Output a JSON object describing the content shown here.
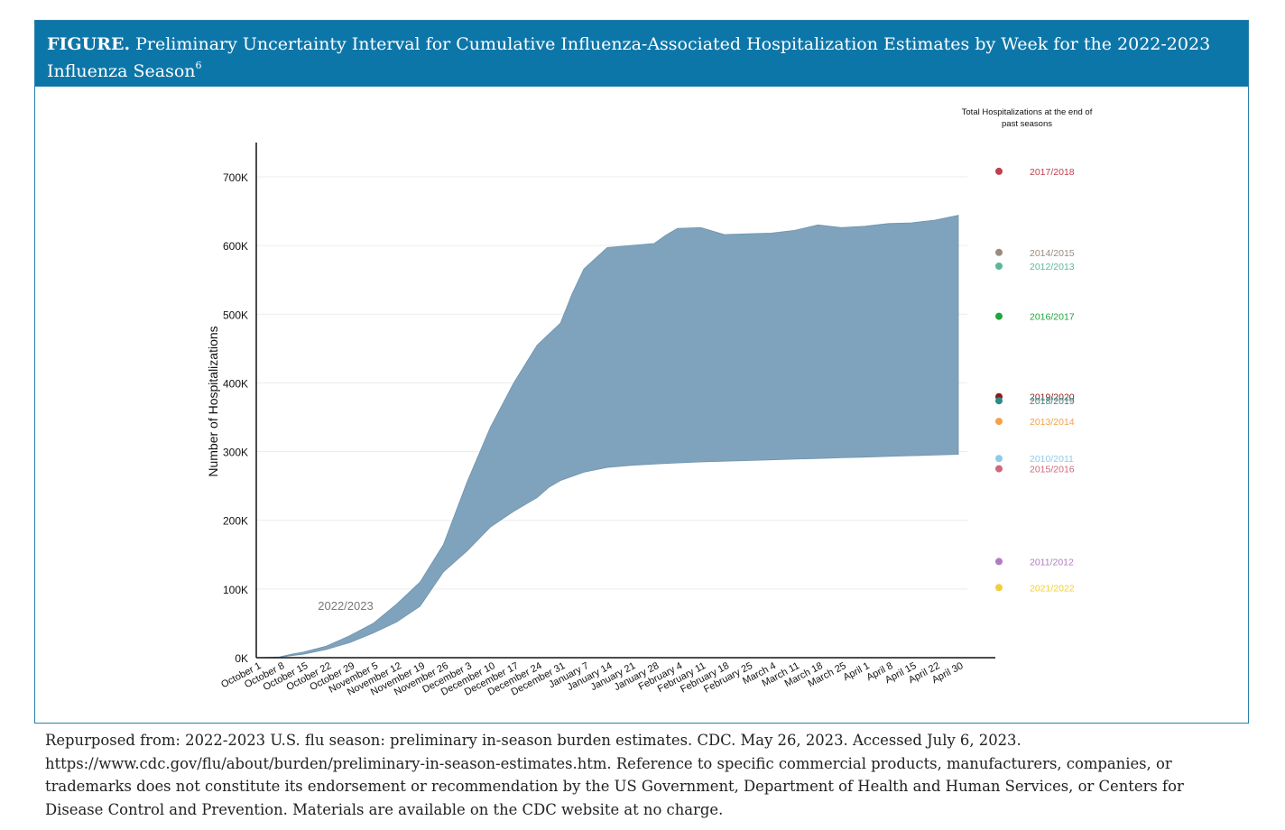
{
  "header": {
    "label": "FIGURE.",
    "title": "Preliminary Uncertainty Interval for Cumulative Influenza-Associated Hospitalization Estimates by Week for the 2022-2023 Influenza Season",
    "footnote": "6"
  },
  "chart_data": {
    "type": "area",
    "title": "",
    "xlabel": "",
    "ylabel": "Number of Hospitalizations",
    "ylim": [
      0,
      750000
    ],
    "y_ticks": [
      {
        "value": 0,
        "label": "0K"
      },
      {
        "value": 100000,
        "label": "100K"
      },
      {
        "value": 200000,
        "label": "200K"
      },
      {
        "value": 300000,
        "label": "300K"
      },
      {
        "value": 400000,
        "label": "400K"
      },
      {
        "value": 500000,
        "label": "500K"
      },
      {
        "value": 600000,
        "label": "600K"
      },
      {
        "value": 700000,
        "label": "700K"
      }
    ],
    "grid": true,
    "band_label": "2022/2023",
    "band_color": "#7fa3bd",
    "x_tick_labels": [
      "October 1",
      "October 8",
      "October 15",
      "October 22",
      "October 29",
      "November 5",
      "November 12",
      "November 19",
      "November 26",
      "December 3",
      "December 10",
      "December 17",
      "December 24",
      "December 31",
      "January 7",
      "January 14",
      "January 21",
      "January 28",
      "February 4",
      "February 11",
      "February 18",
      "February 25",
      "March 4",
      "March 11",
      "March 18",
      "March 25",
      "April 1",
      "April 8",
      "April 15",
      "April 22",
      "April 30"
    ],
    "series": [
      {
        "name": "2022/2023 upper bound",
        "points": [
          [
            0,
            0
          ],
          [
            1,
            1000
          ],
          [
            1.5,
            5000
          ],
          [
            2,
            8000
          ],
          [
            3,
            17000
          ],
          [
            4,
            32000
          ],
          [
            5,
            50000
          ],
          [
            6,
            78000
          ],
          [
            7,
            110000
          ],
          [
            8,
            165000
          ],
          [
            9,
            255000
          ],
          [
            10,
            335000
          ],
          [
            11,
            400000
          ],
          [
            12,
            455000
          ],
          [
            13,
            487000
          ],
          [
            13.5,
            530000
          ],
          [
            14,
            566000
          ],
          [
            15,
            597000
          ],
          [
            16,
            600000
          ],
          [
            17,
            603000
          ],
          [
            17.5,
            615000
          ],
          [
            18,
            625000
          ],
          [
            19,
            626000
          ],
          [
            20,
            616000
          ],
          [
            21,
            617000
          ],
          [
            22,
            618000
          ],
          [
            23,
            622000
          ],
          [
            24,
            630000
          ],
          [
            25,
            626000
          ],
          [
            26,
            628000
          ],
          [
            27,
            632000
          ],
          [
            28,
            633000
          ],
          [
            29,
            637000
          ],
          [
            30,
            644000
          ]
        ]
      },
      {
        "name": "2022/2023 lower bound",
        "points": [
          [
            0,
            0
          ],
          [
            1,
            500
          ],
          [
            1.5,
            3000
          ],
          [
            2,
            5000
          ],
          [
            3,
            12000
          ],
          [
            4,
            22000
          ],
          [
            5,
            36000
          ],
          [
            6,
            52000
          ],
          [
            7,
            75000
          ],
          [
            8,
            125000
          ],
          [
            9,
            155000
          ],
          [
            10,
            190000
          ],
          [
            11,
            213000
          ],
          [
            12,
            233000
          ],
          [
            12.5,
            248000
          ],
          [
            13,
            258000
          ],
          [
            14,
            270000
          ],
          [
            15,
            277000
          ],
          [
            16,
            280000
          ],
          [
            17,
            282000
          ],
          [
            18,
            283500
          ],
          [
            19,
            285000
          ],
          [
            20,
            286000
          ],
          [
            21,
            287000
          ],
          [
            22,
            288000
          ],
          [
            23,
            289000
          ],
          [
            24,
            290000
          ],
          [
            25,
            291000
          ],
          [
            26,
            292000
          ],
          [
            27,
            293000
          ],
          [
            28,
            294000
          ],
          [
            29,
            295000
          ],
          [
            30,
            296000
          ]
        ]
      }
    ],
    "legend_title": "Total Hospitalizations at the end of past seasons",
    "past_seasons": [
      {
        "season": "2017/2018",
        "value": 708000,
        "color": "#c0404e"
      },
      {
        "season": "2014/2015",
        "value": 590000,
        "color": "#9c8b7e"
      },
      {
        "season": "2012/2013",
        "value": 570000,
        "color": "#5bb896"
      },
      {
        "season": "2016/2017",
        "value": 497000,
        "color": "#22a43c"
      },
      {
        "season": "2019/2020",
        "value": 380000,
        "color": "#8b1a1a"
      },
      {
        "season": "2018/2019",
        "value": 374000,
        "color": "#2a8a88"
      },
      {
        "season": "2013/2014",
        "value": 344000,
        "color": "#f5a04a"
      },
      {
        "season": "2010/2011",
        "value": 290000,
        "color": "#8ecbea"
      },
      {
        "season": "2015/2016",
        "value": 275000,
        "color": "#d0677a"
      },
      {
        "season": "2011/2012",
        "value": 140000,
        "color": "#b07cc0"
      },
      {
        "season": "2021/2022",
        "value": 102000,
        "color": "#f2cf3a"
      }
    ]
  },
  "caption": "Repurposed from: 2022-2023 U.S. flu season: preliminary in-season burden estimates. CDC. May 26, 2023. Accessed July 6, 2023. https://www.cdc.gov/flu/about/burden/preliminary-in-season-estimates.htm. Reference to specific commercial products, manufacturers, companies, or trademarks does not constitute its endorsement or recommendation by the US Government, Department of Health and Human Services, or Centers for Disease Control and Prevention. Materials are available on the CDC website at no charge."
}
